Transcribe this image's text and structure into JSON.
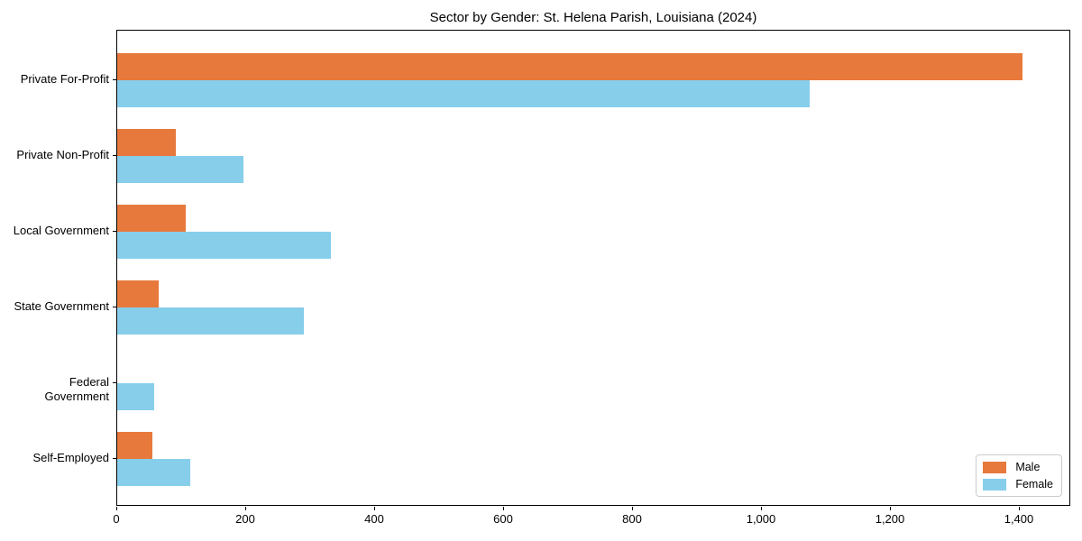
{
  "chart_data": {
    "type": "bar",
    "orientation": "horizontal",
    "title": "Sector by Gender: St. Helena Parish, Louisiana (2024)",
    "categories": [
      "Private For-Profit",
      "Private Non-Profit",
      "Local Government",
      "State Government",
      "Federal Government",
      "Self-Employed"
    ],
    "series": [
      {
        "name": "Male",
        "color": "#E8793C",
        "values": [
          1405,
          91,
          106,
          64,
          0,
          54
        ]
      },
      {
        "name": "Female",
        "color": "#87CEEB",
        "values": [
          1075,
          196,
          331,
          289,
          57,
          114
        ]
      }
    ],
    "xlabel": "",
    "ylabel": "",
    "xlim": [
      0,
      1480
    ],
    "x_ticks": [
      0,
      200,
      400,
      600,
      800,
      1000,
      1200,
      1400
    ],
    "x_tick_labels": [
      "0",
      "200",
      "400",
      "600",
      "800",
      "1,000",
      "1,200",
      "1,400"
    ],
    "legend_position": "lower right",
    "grid": false,
    "background_color": "#ffffff",
    "frame_color": "#000000"
  }
}
